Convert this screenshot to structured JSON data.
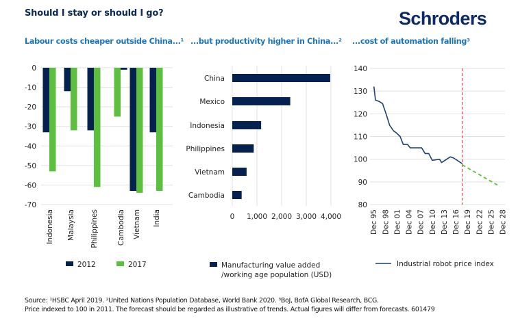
{
  "header": {
    "title": "Should I stay or should I go?",
    "logo": "Schroders"
  },
  "subtitles": [
    "Labour costs cheaper outside China...¹",
    "...but productivity higher in China...²",
    "...cost of automation falling³"
  ],
  "colors": {
    "navy": "#05214f",
    "green": "#5cbf3d",
    "accent_blue": "#1a75bc",
    "forecast_line": "#e31b23",
    "gridline": "#e0e0e0"
  },
  "chart_data": [
    {
      "type": "bar",
      "title": "Labour costs cheaper outside China...¹",
      "orientation": "vertical",
      "categories": [
        "Indonesia",
        "Malaysia",
        "Philippines",
        "Cambodia",
        "Vietnam",
        "India"
      ],
      "series": [
        {
          "name": "2012",
          "color": "#05214f",
          "values": [
            -33,
            -12,
            -32,
            -1,
            -63,
            -33
          ]
        },
        {
          "name": "2017",
          "color": "#5cbf3d",
          "values": [
            -53,
            -32,
            -61,
            -25,
            -64,
            -63
          ]
        }
      ],
      "yticks": [
        0,
        -10,
        -20,
        -30,
        -40,
        -50,
        -60,
        -70
      ],
      "ylim": [
        -70,
        0
      ],
      "xlabel": "",
      "ylabel": "",
      "grid": true,
      "legend": "bottom"
    },
    {
      "type": "bar",
      "title": "...but productivity higher in China...²",
      "orientation": "horizontal",
      "categories": [
        "China",
        "Mexico",
        "Indonesia",
        "Philippines",
        "Vietnam",
        "Cambodia"
      ],
      "series": [
        {
          "name": "Manufacturing value added /working age population (USD)",
          "color": "#05214f",
          "values": [
            3970,
            2350,
            1170,
            870,
            580,
            380
          ]
        }
      ],
      "xticks": [
        "0",
        "1,000",
        "2,000",
        "3,000",
        "4,000"
      ],
      "xlim": [
        0,
        4000
      ],
      "legend_lines": [
        "Manufacturing value added",
        "/working age population (USD)"
      ],
      "grid": true,
      "legend": "bottom"
    },
    {
      "type": "line",
      "title": "...cost of automation falling³",
      "series": [
        {
          "name": "Industrial robot price index",
          "color": "#1f3f73",
          "x": [
            1996.0,
            1996.4,
            1997.3,
            1998.2,
            1999.1,
            2000.0,
            2001.0,
            2001.8,
            2002.7,
            2003.5,
            2004.6,
            2005.3,
            2008.2,
            2009.1,
            2010.0,
            2010.9,
            2012.8,
            2013.3,
            2015.5,
            2016.4,
            2018.6
          ],
          "y": [
            132,
            126,
            125.5,
            124.5,
            120,
            115,
            112.5,
            111.5,
            110,
            106.5,
            106.5,
            105,
            105,
            102.5,
            102.5,
            99.5,
            100,
            98.5,
            101,
            100.5,
            98
          ]
        },
        {
          "name": "Forecast",
          "color": "#5cbf3d",
          "style": "dashed",
          "x": [
            2018.6,
            2028.2
          ],
          "y": [
            97.5,
            88
          ]
        }
      ],
      "xticks": [
        "Dec 95",
        "Dec 98",
        "Dec 01",
        "Dec 04",
        "Dec 07",
        "Dec 10",
        "Dec 13",
        "Dec 16",
        "Dec 19",
        "Dec 22",
        "Dec 25",
        "Dec 28"
      ],
      "xtick_values": [
        1995.9,
        1998.9,
        2001.9,
        2004.9,
        2007.9,
        2010.9,
        2013.9,
        2016.9,
        2019.9,
        2022.9,
        2025.9,
        2028.9
      ],
      "yticks": [
        140,
        130,
        120,
        110,
        100,
        90,
        80
      ],
      "ylim": [
        80,
        140
      ],
      "xlim": [
        1995.0,
        2029.5
      ],
      "forecast_divider_x": 2018.6,
      "grid": true,
      "legend": "bottom"
    }
  ],
  "source": {
    "line1": "Source: ¹HSBC April 2019. ²United Nations Population Database, World Bank 2020. ³BoJ, BofA Global Research, BCG.",
    "line2": "Price indexed to 100 in 2011. The forecast should be regarded as illustrative of trends. Actual figures will differ from forecasts. 601479"
  }
}
